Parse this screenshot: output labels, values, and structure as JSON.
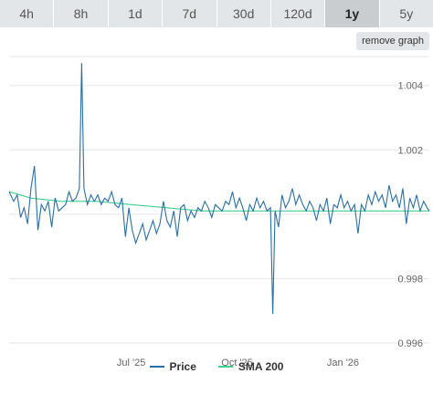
{
  "tabs": [
    {
      "label": "4h",
      "active": false
    },
    {
      "label": "8h",
      "active": false
    },
    {
      "label": "1d",
      "active": false
    },
    {
      "label": "7d",
      "active": false
    },
    {
      "label": "30d",
      "active": false
    },
    {
      "label": "120d",
      "active": false
    },
    {
      "label": "1y",
      "active": true
    },
    {
      "label": "5y",
      "active": false
    }
  ],
  "remove_graph_label": "remove graph",
  "colors": {
    "price": "#2a6ea6",
    "sma": "#3fcf8e"
  },
  "chart_data": {
    "type": "line",
    "x_range": [
      "2025-03-17",
      "2026-03-17"
    ],
    "ylim": [
      0.9958,
      1.0049
    ],
    "yticks": [
      {
        "value": 0.996,
        "label": "0.996"
      },
      {
        "value": 0.998,
        "label": "0.998"
      },
      {
        "value": 1.002,
        "label": "1.002"
      },
      {
        "value": 1.004,
        "label": "1.004"
      }
    ],
    "xticks": [
      {
        "date": "2025-07-01",
        "label": "Jul '25"
      },
      {
        "date": "2025-10-01",
        "label": "Oct '25"
      },
      {
        "date": "2026-01-01",
        "label": "Jan '26"
      }
    ],
    "grid": true,
    "legend_position": "bottom-center",
    "series": [
      {
        "name": "Price",
        "points": [
          [
            "2025-03-17",
            1.0007
          ],
          [
            "2025-03-21",
            1.0004
          ],
          [
            "2025-03-24",
            1.0006
          ],
          [
            "2025-03-27",
            0.9999
          ],
          [
            "2025-03-30",
            1.0002
          ],
          [
            "2025-04-02",
            0.9997
          ],
          [
            "2025-04-05",
            1.0008
          ],
          [
            "2025-04-08",
            1.0015
          ],
          [
            "2025-04-11",
            0.9995
          ],
          [
            "2025-04-14",
            1.0003
          ],
          [
            "2025-04-17",
            1.0001
          ],
          [
            "2025-04-20",
            1.0004
          ],
          [
            "2025-04-23",
            0.9996
          ],
          [
            "2025-04-26",
            1.0005
          ],
          [
            "2025-04-29",
            1.0001
          ],
          [
            "2025-05-02",
            1.0002
          ],
          [
            "2025-05-05",
            1.0003
          ],
          [
            "2025-05-08",
            1.0007
          ],
          [
            "2025-05-11",
            1.0004
          ],
          [
            "2025-05-14",
            1.0005
          ],
          [
            "2025-05-17",
            1.0008
          ],
          [
            "2025-05-19",
            1.0047
          ],
          [
            "2025-05-21",
            1.0008
          ],
          [
            "2025-05-24",
            1.0003
          ],
          [
            "2025-05-27",
            1.0006
          ],
          [
            "2025-05-30",
            1.0004
          ],
          [
            "2025-06-02",
            1.0006
          ],
          [
            "2025-06-05",
            1.0003
          ],
          [
            "2025-06-08",
            1.0005
          ],
          [
            "2025-06-11",
            1.0004
          ],
          [
            "2025-06-14",
            1.0007
          ],
          [
            "2025-06-17",
            1.0003
          ],
          [
            "2025-06-20",
            1.0002
          ],
          [
            "2025-06-23",
            1.0005
          ],
          [
            "2025-06-26",
            0.9993
          ],
          [
            "2025-06-29",
            1.0002
          ],
          [
            "2025-07-02",
            0.9995
          ],
          [
            "2025-07-05",
            0.9991
          ],
          [
            "2025-07-08",
            0.9994
          ],
          [
            "2025-07-11",
            0.9997
          ],
          [
            "2025-07-14",
            0.9992
          ],
          [
            "2025-07-17",
            0.9995
          ],
          [
            "2025-07-20",
            0.9998
          ],
          [
            "2025-07-23",
            0.9994
          ],
          [
            "2025-07-26",
            0.9997
          ],
          [
            "2025-07-29",
            1.0004
          ],
          [
            "2025-08-01",
            0.9998
          ],
          [
            "2025-08-04",
            0.9996
          ],
          [
            "2025-08-07",
            1.0001
          ],
          [
            "2025-08-10",
            0.9993
          ],
          [
            "2025-08-13",
            1.0002
          ],
          [
            "2025-08-16",
            1.0003
          ],
          [
            "2025-08-19",
            0.9998
          ],
          [
            "2025-08-22",
            1.0001
          ],
          [
            "2025-08-25",
            0.9999
          ],
          [
            "2025-08-28",
            1.0002
          ],
          [
            "2025-08-31",
            1.0001
          ],
          [
            "2025-09-03",
            1.0004
          ],
          [
            "2025-09-06",
            1.0002
          ],
          [
            "2025-09-09",
            0.9999
          ],
          [
            "2025-09-12",
            1.0003
          ],
          [
            "2025-09-15",
            1.0002
          ],
          [
            "2025-09-18",
            1.0001
          ],
          [
            "2025-09-21",
            1.0004
          ],
          [
            "2025-09-24",
            1.0003
          ],
          [
            "2025-09-27",
            1.0007
          ],
          [
            "2025-09-30",
            1.0002
          ],
          [
            "2025-10-03",
            1.0005
          ],
          [
            "2025-10-06",
            1.0002
          ],
          [
            "2025-10-09",
            0.9998
          ],
          [
            "2025-10-12",
            1.0003
          ],
          [
            "2025-10-15",
            1.0001
          ],
          [
            "2025-10-18",
            1.0005
          ],
          [
            "2025-10-21",
            1.0002
          ],
          [
            "2025-10-24",
            1.0004
          ],
          [
            "2025-10-27",
            1.0001
          ],
          [
            "2025-10-30",
            1.0002
          ],
          [
            "2025-11-01",
            0.9969
          ],
          [
            "2025-11-03",
            1.0001
          ],
          [
            "2025-11-06",
            0.9996
          ],
          [
            "2025-11-09",
            1.0006
          ],
          [
            "2025-11-12",
            1.0002
          ],
          [
            "2025-11-15",
            1.0004
          ],
          [
            "2025-11-18",
            1.0008
          ],
          [
            "2025-11-21",
            1.0003
          ],
          [
            "2025-11-24",
            1.0006
          ],
          [
            "2025-11-27",
            1.0003
          ],
          [
            "2025-11-30",
            1.0001
          ],
          [
            "2025-12-03",
            1.0004
          ],
          [
            "2025-12-06",
            1.0002
          ],
          [
            "2025-12-09",
            0.9998
          ],
          [
            "2025-12-12",
            1.0003
          ],
          [
            "2025-12-15",
            1.0001
          ],
          [
            "2025-12-18",
            1.0005
          ],
          [
            "2025-12-21",
            0.9997
          ],
          [
            "2025-12-24",
            1.0003
          ],
          [
            "2025-12-27",
            1.0002
          ],
          [
            "2025-12-30",
            1.0006
          ],
          [
            "2026-01-02",
            1.0002
          ],
          [
            "2026-01-05",
            1.0004
          ],
          [
            "2026-01-08",
            1.0001
          ],
          [
            "2026-01-11",
            1.0003
          ],
          [
            "2026-01-14",
            0.9994
          ],
          [
            "2026-01-17",
            1.0003
          ],
          [
            "2026-01-20",
            1.0001
          ],
          [
            "2026-01-23",
            1.0006
          ],
          [
            "2026-01-26",
            1.0003
          ],
          [
            "2026-01-29",
            1.0007
          ],
          [
            "2026-02-01",
            1.0004
          ],
          [
            "2026-02-04",
            1.0006
          ],
          [
            "2026-02-07",
            1.0002
          ],
          [
            "2026-02-10",
            1.0009
          ],
          [
            "2026-02-13",
            1.0004
          ],
          [
            "2026-02-16",
            1.0006
          ],
          [
            "2026-02-19",
            1.0002
          ],
          [
            "2026-02-22",
            1.0008
          ],
          [
            "2026-02-25",
            0.9997
          ],
          [
            "2026-02-28",
            1.0005
          ],
          [
            "2026-03-03",
            1.0002
          ],
          [
            "2026-03-06",
            1.0006
          ],
          [
            "2026-03-09",
            1.0001
          ],
          [
            "2026-03-12",
            1.0004
          ],
          [
            "2026-03-15",
            1.0002
          ],
          [
            "2026-03-17",
            1.0001
          ]
        ]
      },
      {
        "name": "SMA 200",
        "points": [
          [
            "2025-03-17",
            1.0007
          ],
          [
            "2025-04-05",
            1.0005
          ],
          [
            "2025-05-01",
            1.0004
          ],
          [
            "2025-06-01",
            1.0004
          ],
          [
            "2025-07-01",
            1.0003
          ],
          [
            "2025-08-01",
            1.0002
          ],
          [
            "2025-09-01",
            1.0001
          ],
          [
            "2025-10-01",
            1.0001
          ],
          [
            "2025-11-01",
            1.0001
          ],
          [
            "2025-12-01",
            1.0001
          ],
          [
            "2026-01-01",
            1.0001
          ],
          [
            "2026-02-01",
            1.0001
          ],
          [
            "2026-03-17",
            1.0001
          ]
        ]
      }
    ]
  }
}
